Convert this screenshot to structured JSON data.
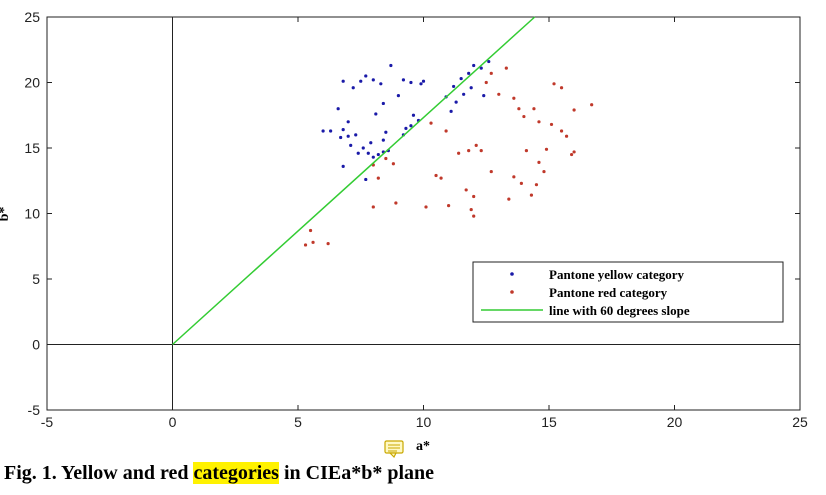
{
  "chart_data": {
    "type": "scatter",
    "xlabel": "a*",
    "ylabel": "b*",
    "xlim": [
      -5,
      25
    ],
    "ylim": [
      -5,
      25
    ],
    "xticks": [
      "-5",
      "0",
      "5",
      "10",
      "15",
      "20",
      "25"
    ],
    "yticks": [
      "-5",
      "0",
      "5",
      "10",
      "15",
      "20",
      "25"
    ],
    "grid": false,
    "legend_position": "lower-right",
    "series": [
      {
        "name": "Pantone yellow category",
        "color": "#1a1aa8",
        "marker": "point",
        "points": [
          [
            6.8,
            20.1
          ],
          [
            7.5,
            20.1
          ],
          [
            7.2,
            19.6
          ],
          [
            7.7,
            20.5
          ],
          [
            8.0,
            20.2
          ],
          [
            8.3,
            19.9
          ],
          [
            8.7,
            21.3
          ],
          [
            9.0,
            19.0
          ],
          [
            9.2,
            20.2
          ],
          [
            9.5,
            20.0
          ],
          [
            9.9,
            19.9
          ],
          [
            10.0,
            20.1
          ],
          [
            9.6,
            17.5
          ],
          [
            9.3,
            16.5
          ],
          [
            8.4,
            18.4
          ],
          [
            8.1,
            17.6
          ],
          [
            6.6,
            18.0
          ],
          [
            7.0,
            17.0
          ],
          [
            6.8,
            16.4
          ],
          [
            6.3,
            16.3
          ],
          [
            6.0,
            16.3
          ],
          [
            6.7,
            15.8
          ],
          [
            7.0,
            15.9
          ],
          [
            7.3,
            16.0
          ],
          [
            7.1,
            15.2
          ],
          [
            7.6,
            15.0
          ],
          [
            7.4,
            14.6
          ],
          [
            7.8,
            14.6
          ],
          [
            8.0,
            14.3
          ],
          [
            8.2,
            14.5
          ],
          [
            8.4,
            14.7
          ],
          [
            8.6,
            14.8
          ],
          [
            7.7,
            12.6
          ],
          [
            6.8,
            13.6
          ],
          [
            7.9,
            15.4
          ],
          [
            8.4,
            15.6
          ],
          [
            8.5,
            16.2
          ],
          [
            9.2,
            16.0
          ],
          [
            9.5,
            16.7
          ],
          [
            9.8,
            17.1
          ],
          [
            11.1,
            17.8
          ],
          [
            11.3,
            18.5
          ],
          [
            11.6,
            19.1
          ],
          [
            11.9,
            19.6
          ],
          [
            11.5,
            20.3
          ],
          [
            11.8,
            20.7
          ],
          [
            12.3,
            21.1
          ],
          [
            12.0,
            21.3
          ],
          [
            12.6,
            21.6
          ],
          [
            11.2,
            19.7
          ],
          [
            12.4,
            19.0
          ],
          [
            10.9,
            18.9
          ]
        ]
      },
      {
        "name": "Pantone red category",
        "color": "#c0392b",
        "marker": "point",
        "points": [
          [
            5.3,
            7.6
          ],
          [
            5.6,
            7.8
          ],
          [
            5.5,
            8.7
          ],
          [
            6.2,
            7.7
          ],
          [
            8.0,
            13.7
          ],
          [
            8.0,
            10.5
          ],
          [
            8.2,
            12.7
          ],
          [
            8.5,
            14.2
          ],
          [
            8.8,
            13.8
          ],
          [
            8.9,
            10.8
          ],
          [
            10.1,
            10.5
          ],
          [
            10.3,
            16.9
          ],
          [
            10.5,
            12.9
          ],
          [
            10.7,
            12.7
          ],
          [
            10.9,
            16.3
          ],
          [
            11.0,
            10.6
          ],
          [
            11.4,
            14.6
          ],
          [
            11.8,
            14.8
          ],
          [
            11.7,
            11.8
          ],
          [
            11.9,
            10.3
          ],
          [
            12.0,
            9.8
          ],
          [
            12.0,
            11.3
          ],
          [
            12.1,
            15.2
          ],
          [
            12.3,
            14.8
          ],
          [
            12.7,
            13.2
          ],
          [
            12.5,
            20.0
          ],
          [
            12.7,
            20.7
          ],
          [
            13.0,
            19.1
          ],
          [
            13.3,
            21.1
          ],
          [
            13.6,
            12.8
          ],
          [
            13.4,
            11.1
          ],
          [
            13.8,
            18.0
          ],
          [
            13.9,
            12.3
          ],
          [
            14.1,
            14.8
          ],
          [
            14.0,
            17.4
          ],
          [
            14.3,
            11.4
          ],
          [
            14.4,
            18.0
          ],
          [
            14.5,
            12.2
          ],
          [
            14.6,
            13.9
          ],
          [
            14.6,
            17.0
          ],
          [
            14.9,
            14.9
          ],
          [
            15.1,
            16.8
          ],
          [
            15.2,
            19.9
          ],
          [
            15.5,
            19.6
          ],
          [
            15.5,
            16.3
          ],
          [
            15.7,
            15.9
          ],
          [
            15.9,
            14.5
          ],
          [
            16.0,
            14.7
          ],
          [
            16.0,
            17.9
          ],
          [
            16.7,
            18.3
          ],
          [
            14.8,
            13.2
          ],
          [
            13.6,
            18.8
          ]
        ]
      },
      {
        "name": "line with 60 degrees slope",
        "color": "#33cc33",
        "type": "line",
        "points": [
          [
            0,
            0
          ],
          [
            14.43,
            25
          ]
        ]
      }
    ]
  },
  "caption": {
    "prefix": "Fig. 1. Yellow and red ",
    "highlight": "categories",
    "suffix": " in  CIEa*b* plane"
  }
}
